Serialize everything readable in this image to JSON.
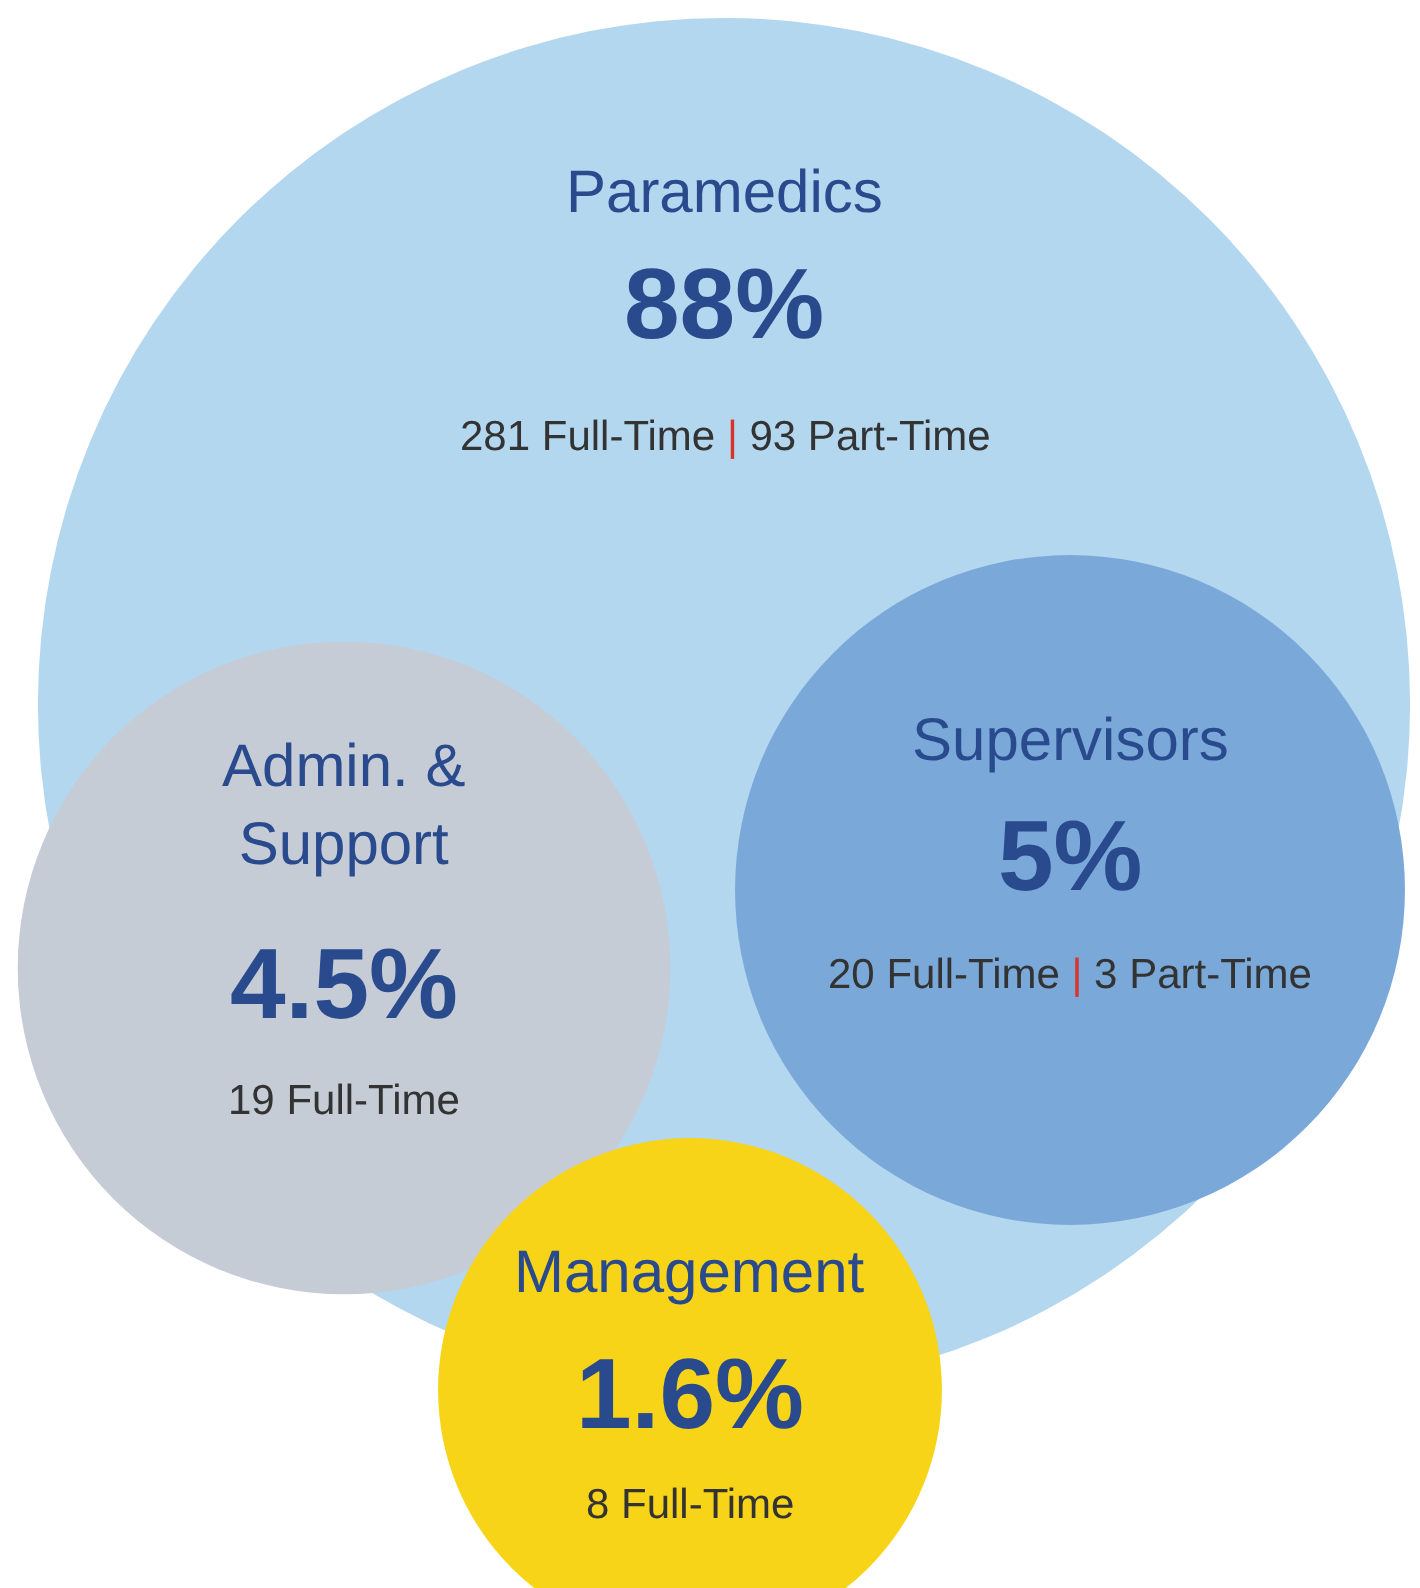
{
  "chart_data": {
    "type": "other",
    "categories": [
      "Paramedics",
      "Supervisors",
      "Admin. & Support",
      "Management"
    ],
    "values": [
      88,
      5,
      4.5,
      1.6
    ],
    "value_labels": [
      "88%",
      "5%",
      "4.5%",
      "1.6%"
    ],
    "colors": [
      "#b3d7ef",
      "#7aa9d9",
      "#c5ccd6",
      "#f7d417"
    ],
    "annotations": [
      "281 Full-Time | 93 Part-Time",
      "20 Full-Time | 3 Part-Time",
      "19 Full-Time",
      "8 Full-Time"
    ]
  }
}
